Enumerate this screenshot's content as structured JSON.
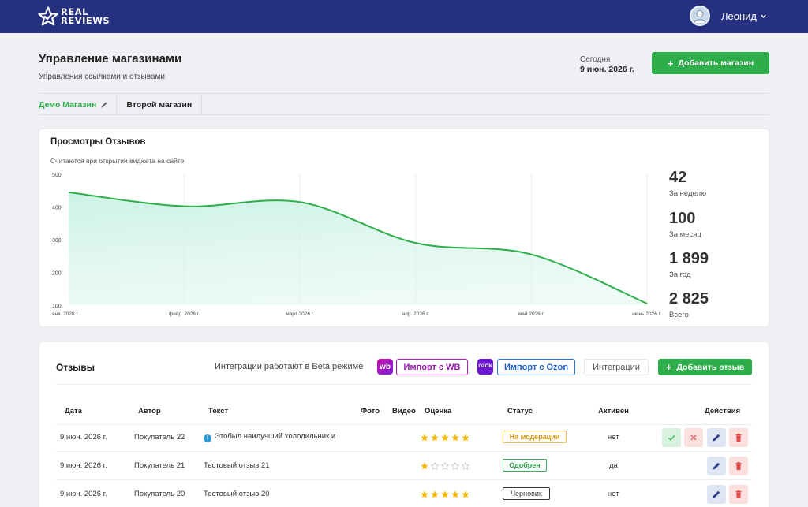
{
  "app": {
    "logo_line1": "REAL",
    "logo_line2": "REVIEWS",
    "user_name": "Леонид"
  },
  "header": {
    "title": "Управление магазинами",
    "subtitle": "Управления ссылками и отзывами",
    "today_label": "Сегодня",
    "today_date": "9 июн. 2026 г.",
    "add_store_label": "Добавить магазин"
  },
  "store_tabs": [
    {
      "label": "Демо Магазин",
      "active": true
    },
    {
      "label": "Второй магазин",
      "active": false
    }
  ],
  "views": {
    "title": "Просмотры Отзывов",
    "subtitle": "Считаются при открытии виджета на сайте",
    "stats": [
      {
        "value": "42",
        "label": "За неделю"
      },
      {
        "value": "100",
        "label": "За месяц"
      },
      {
        "value": "1 899",
        "label": "За год"
      },
      {
        "value": "2 825",
        "label": "Всего"
      }
    ]
  },
  "chart_data": {
    "type": "area",
    "x": [
      "янв. 2026 г.",
      "февр. 2026 г.",
      "март 2026 г.",
      "апр. 2026 г.",
      "май 2026 г.",
      "июнь 2026 г."
    ],
    "series": [
      {
        "values": [
          445,
          402,
          415,
          290,
          255,
          105
        ]
      }
    ],
    "y_ticks": [
      100,
      200,
      300,
      400,
      500
    ],
    "ylim": [
      100,
      500
    ],
    "grid": true,
    "line_color": "#2dae4a",
    "fill_color": "#dff6ee"
  },
  "reviews": {
    "title": "Отзывы",
    "beta_note": "Интеграции работают в Beta режиме",
    "wb_logo_text": "wb",
    "ozon_logo_text": "OZON",
    "import_wb_label": "Импорт с WB",
    "import_ozon_label": "Импорт с Ozon",
    "integrations_label": "Интеграции",
    "add_review_label": "Добавить отзыв",
    "columns": {
      "date": "Дата",
      "author": "Автор",
      "text": "Текст",
      "photo": "Фото",
      "video": "Видео",
      "rating": "Оценка",
      "status": "Статус",
      "active": "Активен",
      "actions": "Действия"
    },
    "rows": [
      {
        "date": "9 июн. 2026 г.",
        "author": "Покупатель 22",
        "text": "Этобыл наилучший холодильник и",
        "rating": 5,
        "status": "На модерации",
        "status_kind": "moderation",
        "active": "нет",
        "has_info": true,
        "moderation_actions": true
      },
      {
        "date": "9 июн. 2026 г.",
        "author": "Покупатель 21",
        "text": "Тестовый отзыв 21",
        "rating": 1,
        "status": "Одобрен",
        "status_kind": "approved",
        "active": "да",
        "has_info": false,
        "moderation_actions": false
      },
      {
        "date": "9 июн. 2026 г.",
        "author": "Покупатель 20",
        "text": "Тестовый отзыв 20",
        "rating": 5,
        "status": "Черновик",
        "status_kind": "draft",
        "active": "нет",
        "has_info": false,
        "moderation_actions": false
      }
    ]
  },
  "colors": {
    "topbar": "#25307f",
    "accent_green": "#2dae4a",
    "star_gold": "#f5b800"
  }
}
